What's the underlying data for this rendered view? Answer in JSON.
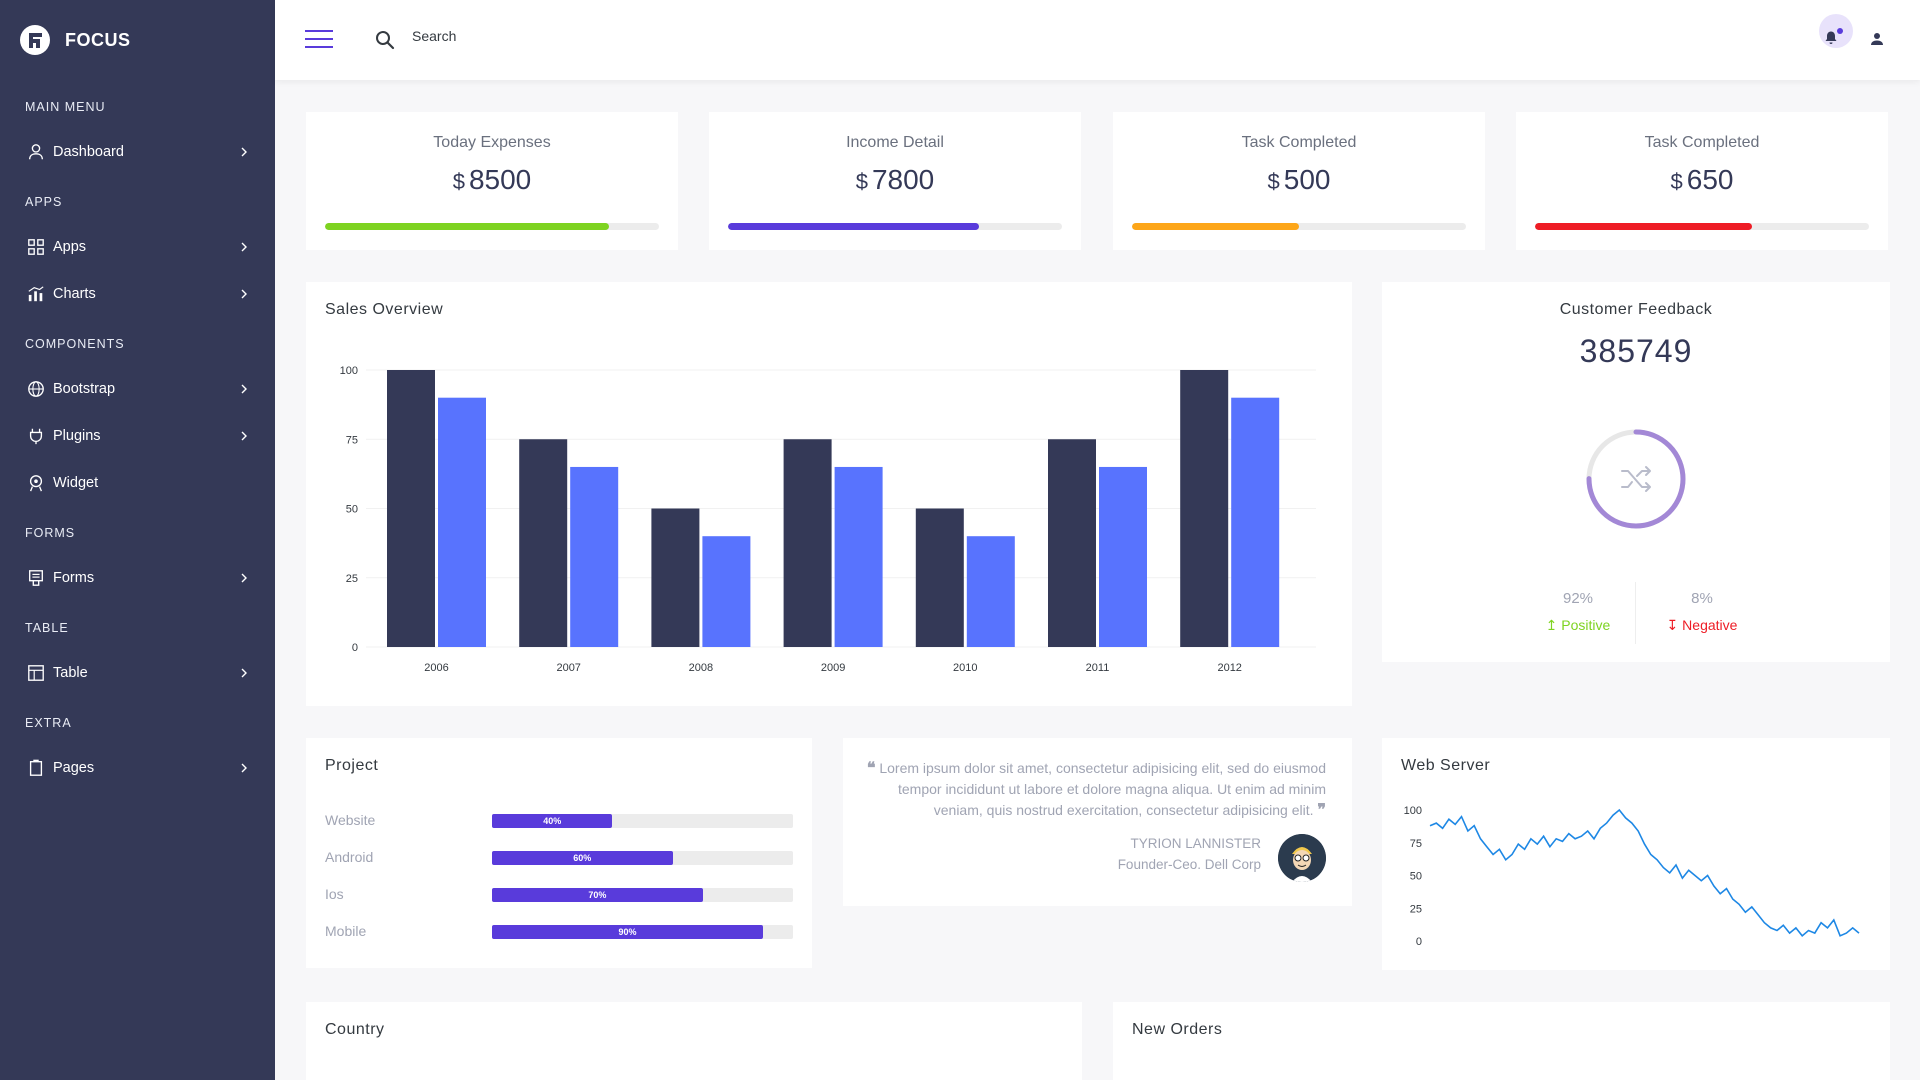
{
  "brand": {
    "name": "FOCUS"
  },
  "sidebar": {
    "sections": [
      {
        "label": "MAIN MENU",
        "items": [
          {
            "label": "Dashboard",
            "icon": "user-icon",
            "has_chevron": true
          }
        ]
      },
      {
        "label": "APPS",
        "items": [
          {
            "label": "Apps",
            "icon": "grid-icon",
            "has_chevron": true
          },
          {
            "label": "Charts",
            "icon": "chart-icon",
            "has_chevron": true
          }
        ]
      },
      {
        "label": "COMPONENTS",
        "items": [
          {
            "label": "Bootstrap",
            "icon": "globe-icon",
            "has_chevron": true
          },
          {
            "label": "Plugins",
            "icon": "plug-icon",
            "has_chevron": true
          },
          {
            "label": "Widget",
            "icon": "widget-icon",
            "has_chevron": false
          }
        ]
      },
      {
        "label": "FORMS",
        "items": [
          {
            "label": "Forms",
            "icon": "form-icon",
            "has_chevron": true
          }
        ]
      },
      {
        "label": "TABLE",
        "items": [
          {
            "label": "Table",
            "icon": "table-icon",
            "has_chevron": true
          }
        ]
      },
      {
        "label": "EXTRA",
        "items": [
          {
            "label": "Pages",
            "icon": "pages-icon",
            "has_chevron": true
          }
        ]
      }
    ]
  },
  "header": {
    "search_placeholder": "Search"
  },
  "stats": [
    {
      "title": "Today Expenses",
      "currency": "$",
      "value": "8500",
      "progress": 0.85,
      "color": "#7ed321"
    },
    {
      "title": "Income Detail",
      "currency": "$",
      "value": "7800",
      "progress": 0.75,
      "color": "#593bdb"
    },
    {
      "title": "Task Completed",
      "currency": "$",
      "value": "500",
      "progress": 0.5,
      "color": "#fda619"
    },
    {
      "title": "Task Completed",
      "currency": "$",
      "value": "650",
      "progress": 0.65,
      "color": "#ee1c25"
    }
  ],
  "sales": {
    "title": "Sales Overview",
    "chart_data": {
      "type": "bar",
      "categories": [
        "2006",
        "2007",
        "2008",
        "2009",
        "2010",
        "2011",
        "2012"
      ],
      "series": [
        {
          "values": [
            100,
            75,
            50,
            75,
            50,
            75,
            100
          ],
          "color": "#343957"
        },
        {
          "values": [
            90,
            65,
            40,
            65,
            40,
            65,
            90
          ],
          "color": "#5873fe"
        }
      ],
      "yticks": [
        "0",
        "25",
        "50",
        "75",
        "100"
      ],
      "ylim": [
        0,
        100
      ]
    }
  },
  "feedback": {
    "title": "Customer Feedback",
    "value": "385749",
    "positive_pct": "92%",
    "positive_label": "Positive",
    "negative_pct": "8%",
    "negative_label": "Negative",
    "ring_fraction": 0.75,
    "ring_color": "#a388d6"
  },
  "project": {
    "title": "Project",
    "rows": [
      {
        "label": "Website",
        "pct": "40%",
        "value": 0.4
      },
      {
        "label": "Android",
        "pct": "60%",
        "value": 0.6
      },
      {
        "label": "Ios",
        "pct": "70%",
        "value": 0.7
      },
      {
        "label": "Mobile",
        "pct": "90%",
        "value": 0.9
      }
    ]
  },
  "testimonial": {
    "text": "Lorem ipsum dolor sit amet, consectetur adipisicing elit, sed do eiusmod tempor incididunt ut labore et dolore magna aliqua. Ut enim ad minim veniam, quis nostrud exercitation, consectetur adipisicing elit.",
    "name": "TYRION LANNISTER",
    "role": "Founder-Ceo. Dell Corp"
  },
  "webserver": {
    "title": "Web Server",
    "chart_data": {
      "type": "line",
      "yticks": [
        "0",
        "25",
        "50",
        "75",
        "100"
      ],
      "ylim": [
        0,
        100
      ],
      "values": [
        88,
        90,
        86,
        93,
        89,
        95,
        84,
        88,
        78,
        72,
        66,
        70,
        62,
        66,
        74,
        70,
        78,
        74,
        80,
        72,
        78,
        76,
        82,
        78,
        80,
        84,
        78,
        86,
        90,
        96,
        100,
        94,
        90,
        84,
        74,
        66,
        62,
        56,
        52,
        58,
        48,
        54,
        50,
        46,
        50,
        42,
        36,
        40,
        32,
        28,
        22,
        26,
        20,
        14,
        10,
        8,
        12,
        6,
        10,
        4,
        8,
        6,
        14,
        10,
        16,
        4,
        6,
        10,
        6
      ]
    }
  },
  "country": {
    "title": "Country"
  },
  "orders": {
    "title": "New Orders"
  }
}
